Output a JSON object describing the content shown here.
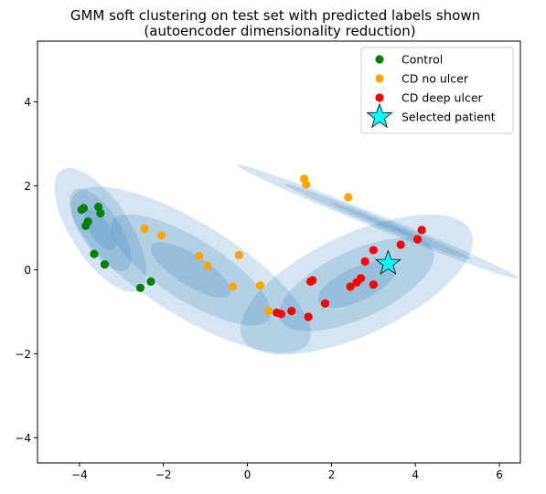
{
  "chart_data": {
    "type": "scatter",
    "title": "GMM soft clustering on test set with predicted labels shown",
    "subtitle": "(autoencoder dimensionality reduction)",
    "xlabel": "",
    "ylabel": "",
    "xlim": [
      -5.0,
      6.5
    ],
    "ylim": [
      -4.6,
      5.45
    ],
    "x_ticks": [
      -4,
      -2,
      0,
      2,
      4,
      6
    ],
    "y_ticks": [
      -4,
      -2,
      0,
      2,
      4
    ],
    "grid": false,
    "legend_position": "top-right",
    "series": [
      {
        "name": "Control",
        "color": "#008000",
        "marker": "circle",
        "points": [
          [
            -3.95,
            1.43
          ],
          [
            -3.9,
            1.47
          ],
          [
            -3.55,
            1.5
          ],
          [
            -3.5,
            1.35
          ],
          [
            -3.8,
            1.15
          ],
          [
            -3.85,
            1.05
          ],
          [
            -3.65,
            0.38
          ],
          [
            -3.4,
            0.13
          ],
          [
            -2.55,
            -0.43
          ],
          [
            -2.3,
            -0.28
          ]
        ]
      },
      {
        "name": "CD no ulcer",
        "color": "#FFA500",
        "marker": "circle",
        "points": [
          [
            -2.45,
            0.98
          ],
          [
            -2.05,
            0.82
          ],
          [
            -1.15,
            0.33
          ],
          [
            -0.95,
            0.1
          ],
          [
            -0.2,
            0.35
          ],
          [
            -0.35,
            -0.4
          ],
          [
            0.3,
            -0.37
          ],
          [
            0.5,
            -0.98
          ],
          [
            1.35,
            2.17
          ],
          [
            1.4,
            2.03
          ],
          [
            2.4,
            1.73
          ]
        ]
      },
      {
        "name": "CD deep ulcer",
        "color": "#FF0000",
        "marker": "circle",
        "points": [
          [
            0.7,
            -1.02
          ],
          [
            0.8,
            -1.05
          ],
          [
            1.05,
            -0.98
          ],
          [
            1.45,
            -1.12
          ],
          [
            1.5,
            -0.28
          ],
          [
            1.55,
            -0.25
          ],
          [
            1.85,
            -0.8
          ],
          [
            2.45,
            -0.4
          ],
          [
            2.6,
            -0.3
          ],
          [
            2.7,
            -0.2
          ],
          [
            2.8,
            0.2
          ],
          [
            3.0,
            0.47
          ],
          [
            3.0,
            -0.35
          ],
          [
            3.65,
            0.6
          ],
          [
            4.05,
            0.73
          ],
          [
            4.15,
            0.95
          ]
        ]
      },
      {
        "name": "Selected patient",
        "color": "#00FFFF",
        "marker": "star",
        "points": [
          [
            3.35,
            0.15
          ]
        ]
      }
    ],
    "gmm_components": [
      {
        "cx": -3.5,
        "cy": 0.95,
        "sx": 0.7,
        "sy": 1.7,
        "angle": 33,
        "levels": 3
      },
      {
        "cx": -1.35,
        "cy": 0.0,
        "sx": 3.3,
        "sy": 1.1,
        "angle": -32,
        "levels": 3
      },
      {
        "cx": 2.6,
        "cy": -0.35,
        "sx": 3.0,
        "sy": 1.2,
        "angle": 25,
        "levels": 3
      },
      {
        "cx": 3.1,
        "cy": 1.15,
        "sx": 3.6,
        "sy": 0.16,
        "angle": -22,
        "levels": 3
      }
    ],
    "ellipse_color": "#1f77b4"
  }
}
